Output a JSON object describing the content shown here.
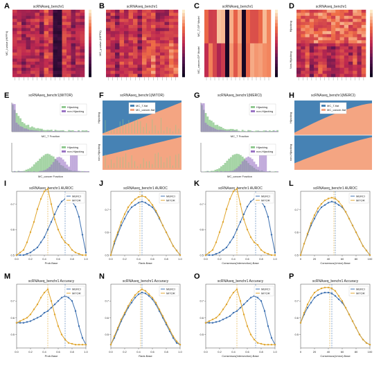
{
  "colors": {
    "merci": "#3b6fb0",
    "mitor": "#e0a52c",
    "blue_fill": "#4682b4",
    "salmon_fill": "#f4a582",
    "green": "#8fc98f",
    "purple": "#9a73c4"
  },
  "row1": {
    "A": {
      "label": "A",
      "title": "scRNAseq_benchr1",
      "ylabel": "MC_l-value (HIPP4)"
    },
    "B": {
      "label": "B",
      "title": "scRNAseq_benchr1",
      "ylabel": "MC_y-value (HIPP4)"
    },
    "C": {
      "label": "C",
      "title": "scRNAseq_benchr1",
      "ylabel_top": "MC_T-GP Model",
      "ylabel_bottom": "MC_cancer-GP Model"
    },
    "D": {
      "label": "D",
      "title": "scRNAseq_benchr1",
      "ylabel_top": "Hijacking",
      "ylabel_bottom": "Non-Hijacking"
    }
  },
  "row2": {
    "E": {
      "label": "E",
      "title": "scRNAseq_benchr1(MiTOR)",
      "legend": [
        "Hijacking",
        "non-Hijacking"
      ],
      "xlabel_top": "MC_T Fraction",
      "xlabel_bottom": "MC_cancer Fraction"
    },
    "F": {
      "label": "F",
      "title": "scRNAseq_benchr1(MiTOR)",
      "legend": [
        "MC_T-flat",
        "MC_cancer-flat"
      ],
      "ylabel_top": "Hijacking",
      "ylabel_bottom": "non-Hijacking"
    },
    "G": {
      "label": "G",
      "title": "scRNAseq_benchr1(MERCI)",
      "legend": [
        "Hijacking",
        "non-Hijacking"
      ],
      "xlabel_top": "MC_T Fraction",
      "xlabel_bottom": "MC_cancer Fraction"
    },
    "H": {
      "label": "H",
      "title": "scRNAseq_benchr1(MERCI)",
      "legend": [
        "MC_T-flat",
        "MC_cancer-flat"
      ],
      "ylabel_top": "Hijacking",
      "ylabel_bottom": "non-Hijacking"
    }
  },
  "chart_data": [
    {
      "panel": "I",
      "type": "line",
      "title": "scRNAseq_benchr1 AUROC",
      "xlabel": "Prob.Base",
      "xlim": [
        0.0,
        1.0
      ],
      "ylim": [
        0.5,
        0.75
      ],
      "xticks": [
        "0.0",
        "0.2",
        "0.4",
        "0.6",
        "0.8",
        "1.0"
      ],
      "yticks": [
        "0.5",
        "0.6",
        "0.7"
      ],
      "x": [
        0.0,
        0.05,
        0.1,
        0.15,
        0.2,
        0.25,
        0.3,
        0.35,
        0.4,
        0.45,
        0.5,
        0.55,
        0.6,
        0.65,
        0.7,
        0.75,
        0.8,
        0.85,
        0.9,
        0.95,
        1.0
      ],
      "vlines": [
        0.45,
        0.7
      ],
      "series": [
        {
          "name": "MERCI",
          "values": [
            0.5,
            0.5,
            0.5,
            0.505,
            0.51,
            0.52,
            0.53,
            0.55,
            0.57,
            0.6,
            0.63,
            0.66,
            0.69,
            0.71,
            0.72,
            0.72,
            0.71,
            0.69,
            0.65,
            0.58,
            0.51
          ]
        },
        {
          "name": "MiTOR",
          "values": [
            0.5,
            0.51,
            0.52,
            0.55,
            0.59,
            0.63,
            0.68,
            0.72,
            0.75,
            0.76,
            0.7,
            0.64,
            0.6,
            0.57,
            0.55,
            0.54,
            0.52,
            0.51,
            0.505,
            0.5,
            0.5
          ]
        }
      ]
    },
    {
      "panel": "J",
      "type": "line",
      "title": "scRNAseq_benchr1 AUROC",
      "xlabel": "Rank.Base",
      "xlim": [
        0.0,
        1.0
      ],
      "ylim": [
        0.5,
        0.78
      ],
      "xticks": [
        "0.0",
        "0.2",
        "0.4",
        "0.6",
        "0.8",
        "1.0"
      ],
      "yticks": [
        "0.5",
        "0.6",
        "0.7"
      ],
      "x": [
        0.0,
        0.05,
        0.1,
        0.15,
        0.2,
        0.25,
        0.3,
        0.35,
        0.4,
        0.45,
        0.5,
        0.55,
        0.6,
        0.65,
        0.7,
        0.75,
        0.8,
        0.85,
        0.9,
        0.95,
        1.0
      ],
      "vlines": [
        0.42,
        0.45
      ],
      "series": [
        {
          "name": "MERCI",
          "values": [
            0.5,
            0.55,
            0.59,
            0.63,
            0.66,
            0.69,
            0.71,
            0.72,
            0.73,
            0.735,
            0.73,
            0.72,
            0.71,
            0.69,
            0.66,
            0.63,
            0.6,
            0.57,
            0.54,
            0.52,
            0.5
          ]
        },
        {
          "name": "MiTOR",
          "values": [
            0.5,
            0.56,
            0.6,
            0.645,
            0.68,
            0.71,
            0.73,
            0.745,
            0.755,
            0.76,
            0.755,
            0.74,
            0.72,
            0.695,
            0.665,
            0.63,
            0.6,
            0.57,
            0.54,
            0.52,
            0.5
          ]
        }
      ]
    },
    {
      "panel": "K",
      "type": "line",
      "title": "scRNAseq_benchr1 AUROC",
      "xlabel": "Consensus(Intersection).Base",
      "xlim": [
        0.0,
        1.0
      ],
      "ylim": [
        0.5,
        0.75
      ],
      "xticks": [
        "0.0",
        "0.2",
        "0.4",
        "0.6",
        "0.8",
        "1.0"
      ],
      "yticks": [
        "0.5",
        "0.6",
        "0.7"
      ],
      "x": [
        0.0,
        0.05,
        0.1,
        0.15,
        0.2,
        0.25,
        0.3,
        0.35,
        0.4,
        0.45,
        0.5,
        0.55,
        0.6,
        0.65,
        0.7,
        0.75,
        0.8,
        0.85,
        0.9,
        0.95,
        1.0
      ],
      "vlines": [
        0.45,
        0.72
      ],
      "series": [
        {
          "name": "MERCI",
          "values": [
            0.5,
            0.5,
            0.5,
            0.505,
            0.51,
            0.52,
            0.53,
            0.55,
            0.57,
            0.6,
            0.63,
            0.66,
            0.69,
            0.71,
            0.72,
            0.72,
            0.71,
            0.69,
            0.65,
            0.58,
            0.51
          ]
        },
        {
          "name": "MiTOR",
          "values": [
            0.5,
            0.51,
            0.52,
            0.55,
            0.59,
            0.63,
            0.68,
            0.72,
            0.75,
            0.76,
            0.7,
            0.64,
            0.6,
            0.57,
            0.55,
            0.54,
            0.52,
            0.51,
            0.505,
            0.5,
            0.5
          ]
        }
      ]
    },
    {
      "panel": "L",
      "type": "line",
      "title": "scRNAseq_benchr1 AUROC",
      "xlabel": "Consensus(Union).Base",
      "xlim": [
        0,
        100
      ],
      "ylim": [
        0.5,
        0.78
      ],
      "xticks": [
        "0",
        "20",
        "40",
        "60",
        "80",
        "100"
      ],
      "yticks": [
        "0.5",
        "0.6",
        "0.7"
      ],
      "x": [
        0,
        5,
        10,
        15,
        20,
        25,
        30,
        35,
        40,
        45,
        50,
        55,
        60,
        65,
        70,
        75,
        80,
        85,
        90,
        95,
        100
      ],
      "vlines": [
        48,
        50
      ],
      "series": [
        {
          "name": "MERCI",
          "values": [
            0.5,
            0.55,
            0.59,
            0.63,
            0.66,
            0.69,
            0.71,
            0.72,
            0.73,
            0.735,
            0.73,
            0.72,
            0.71,
            0.69,
            0.66,
            0.63,
            0.6,
            0.57,
            0.54,
            0.52,
            0.5
          ]
        },
        {
          "name": "MiTOR",
          "values": [
            0.5,
            0.55,
            0.595,
            0.64,
            0.675,
            0.705,
            0.725,
            0.74,
            0.748,
            0.752,
            0.748,
            0.735,
            0.715,
            0.69,
            0.66,
            0.63,
            0.6,
            0.57,
            0.54,
            0.52,
            0.5
          ]
        }
      ]
    },
    {
      "panel": "M",
      "type": "line",
      "title": "scRNAseq_benchr1 Accuracy",
      "xlabel": "Prob.Base",
      "xlim": [
        0.0,
        1.0
      ],
      "ylim": [
        0.42,
        0.8
      ],
      "xticks": [
        "0.0",
        "0.2",
        "0.4",
        "0.6",
        "0.8",
        "1.0"
      ],
      "yticks": [
        "0.5",
        "0.6",
        "0.7"
      ],
      "x": [
        0.0,
        0.05,
        0.1,
        0.15,
        0.2,
        0.25,
        0.3,
        0.35,
        0.4,
        0.45,
        0.5,
        0.55,
        0.6,
        0.65,
        0.7,
        0.75,
        0.8,
        0.85,
        0.9,
        0.95,
        1.0
      ],
      "vlines": [
        0.45,
        0.7
      ],
      "series": [
        {
          "name": "MERCI",
          "values": [
            0.57,
            0.57,
            0.57,
            0.575,
            0.58,
            0.59,
            0.6,
            0.61,
            0.63,
            0.64,
            0.66,
            0.68,
            0.7,
            0.72,
            0.73,
            0.72,
            0.7,
            0.64,
            0.55,
            0.48,
            0.44
          ]
        },
        {
          "name": "MiTOR",
          "values": [
            0.57,
            0.58,
            0.59,
            0.6,
            0.62,
            0.65,
            0.68,
            0.72,
            0.75,
            0.77,
            0.7,
            0.62,
            0.55,
            0.5,
            0.47,
            0.45,
            0.445,
            0.44,
            0.44,
            0.44,
            0.44
          ]
        }
      ]
    },
    {
      "panel": "N",
      "type": "line",
      "title": "scRNAseq_benchr1 Accuracy",
      "xlabel": "Rank.Base",
      "xlim": [
        0.0,
        1.0
      ],
      "ylim": [
        0.42,
        0.8
      ],
      "xticks": [
        "0.0",
        "0.2",
        "0.4",
        "0.6",
        "0.8",
        "1.0"
      ],
      "yticks": [
        "0.5",
        "0.6",
        "0.7"
      ],
      "x": [
        0.0,
        0.05,
        0.1,
        0.15,
        0.2,
        0.25,
        0.3,
        0.35,
        0.4,
        0.45,
        0.5,
        0.55,
        0.6,
        0.65,
        0.7,
        0.75,
        0.8,
        0.85,
        0.9,
        0.95,
        1.0
      ],
      "vlines": [
        0.43,
        0.45
      ],
      "series": [
        {
          "name": "MERCI",
          "values": [
            0.44,
            0.48,
            0.53,
            0.58,
            0.62,
            0.66,
            0.69,
            0.72,
            0.74,
            0.75,
            0.745,
            0.73,
            0.71,
            0.68,
            0.64,
            0.6,
            0.56,
            0.52,
            0.48,
            0.45,
            0.44
          ]
        },
        {
          "name": "MiTOR",
          "values": [
            0.44,
            0.49,
            0.54,
            0.59,
            0.63,
            0.67,
            0.705,
            0.735,
            0.755,
            0.77,
            0.76,
            0.74,
            0.72,
            0.69,
            0.65,
            0.61,
            0.57,
            0.53,
            0.49,
            0.46,
            0.44
          ]
        }
      ]
    },
    {
      "panel": "O",
      "type": "line",
      "title": "scRNAseq_benchr1 Accuracy",
      "xlabel": "Consensus(Intersection).Base",
      "xlim": [
        0.0,
        1.0
      ],
      "ylim": [
        0.42,
        0.8
      ],
      "xticks": [
        "0.0",
        "0.2",
        "0.4",
        "0.6",
        "0.8",
        "1.0"
      ],
      "yticks": [
        "0.5",
        "0.6",
        "0.7"
      ],
      "x": [
        0.0,
        0.05,
        0.1,
        0.15,
        0.2,
        0.25,
        0.3,
        0.35,
        0.4,
        0.45,
        0.5,
        0.55,
        0.6,
        0.65,
        0.7,
        0.75,
        0.8,
        0.85,
        0.9,
        0.95,
        1.0
      ],
      "vlines": [
        0.45,
        0.72
      ],
      "series": [
        {
          "name": "MERCI",
          "values": [
            0.57,
            0.57,
            0.57,
            0.575,
            0.58,
            0.59,
            0.6,
            0.61,
            0.63,
            0.64,
            0.66,
            0.68,
            0.7,
            0.72,
            0.73,
            0.72,
            0.7,
            0.64,
            0.55,
            0.48,
            0.44
          ]
        },
        {
          "name": "MiTOR",
          "values": [
            0.57,
            0.58,
            0.59,
            0.6,
            0.62,
            0.65,
            0.68,
            0.72,
            0.75,
            0.77,
            0.7,
            0.62,
            0.55,
            0.5,
            0.47,
            0.45,
            0.445,
            0.44,
            0.44,
            0.44,
            0.44
          ]
        }
      ]
    },
    {
      "panel": "P",
      "type": "line",
      "title": "scRNAseq_benchr1 Accuracy",
      "xlabel": "Consensus(Union).Base",
      "xlim": [
        0,
        100
      ],
      "ylim": [
        0.42,
        0.8
      ],
      "xticks": [
        "0",
        "20",
        "40",
        "60",
        "80",
        "100"
      ],
      "yticks": [
        "0.5",
        "0.6",
        "0.7"
      ],
      "x": [
        0,
        5,
        10,
        15,
        20,
        25,
        30,
        35,
        40,
        45,
        50,
        55,
        60,
        65,
        70,
        75,
        80,
        85,
        90,
        95,
        100
      ],
      "vlines": [
        42,
        45
      ],
      "series": [
        {
          "name": "MERCI",
          "values": [
            0.57,
            0.62,
            0.66,
            0.69,
            0.72,
            0.735,
            0.745,
            0.75,
            0.75,
            0.745,
            0.73,
            0.71,
            0.69,
            0.66,
            0.62,
            0.58,
            0.54,
            0.5,
            0.47,
            0.45,
            0.44
          ]
        },
        {
          "name": "MiTOR",
          "values": [
            0.57,
            0.63,
            0.68,
            0.72,
            0.75,
            0.765,
            0.775,
            0.78,
            0.78,
            0.775,
            0.76,
            0.73,
            0.7,
            0.66,
            0.62,
            0.58,
            0.54,
            0.5,
            0.47,
            0.45,
            0.44
          ]
        }
      ]
    }
  ]
}
